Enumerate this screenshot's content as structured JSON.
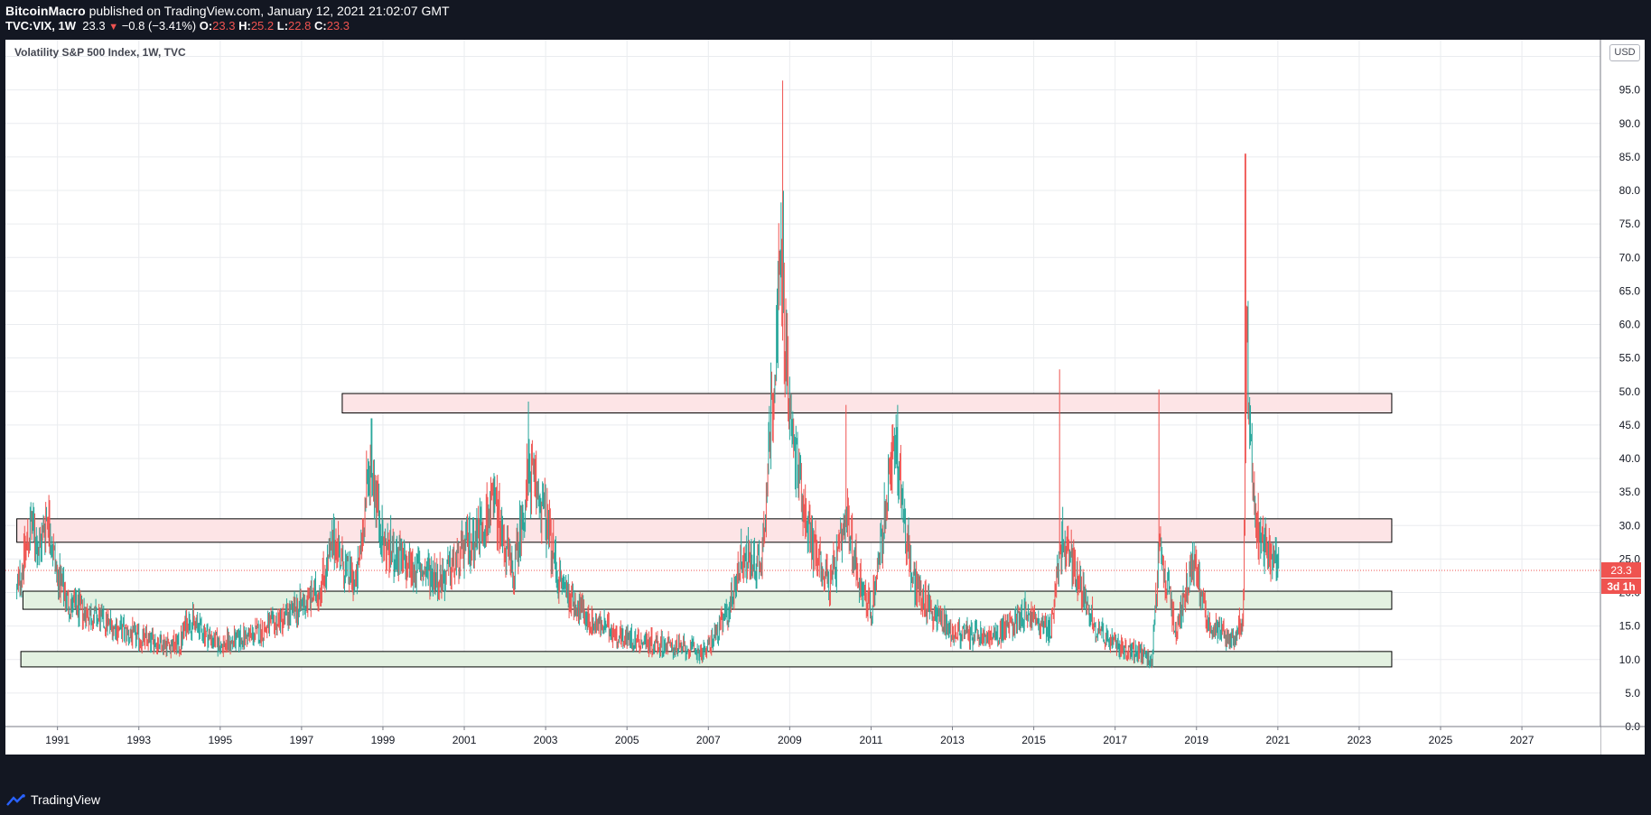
{
  "header": {
    "author": "BitcoinMacro",
    "published_text": "published on TradingView.com, January 12, 2021 21:02:07 GMT",
    "symbol": "TVC:VIX, 1W",
    "last": "23.3",
    "change": "−0.8 (−3.41%)",
    "o_label": "O:",
    "o_value": "23.3",
    "h_label": "H:",
    "h_value": "25.2",
    "l_label": "L:",
    "l_value": "22.8",
    "c_label": "C:",
    "c_value": "23.3"
  },
  "chart_title": "Volatility S&P 500 Index, 1W, TVC",
  "currency": "USD",
  "price_label": "23.3",
  "countdown_label": "3d 1h",
  "footer": {
    "brand": "TradingView",
    "logo_icon": "tradingview-logo-icon"
  },
  "colors": {
    "up": "#26a69a",
    "down": "#ef5350",
    "grid": "#eaecef",
    "resistance_zone": "#fde4e6",
    "support_zone": "#e3f1e1",
    "price_line": "#ef5350"
  },
  "chart_data": {
    "type": "candlestick",
    "xlabel": "",
    "ylabel": "",
    "x_ticks": [
      "1991",
      "1993",
      "1995",
      "1997",
      "1999",
      "2001",
      "2003",
      "2005",
      "2007",
      "2009",
      "2011",
      "2013",
      "2015",
      "2017",
      "2019",
      "2021",
      "2023",
      "2025",
      "2027"
    ],
    "x_range": [
      1989.72,
      2028.93
    ],
    "y_ticks": [
      "0.0",
      "5.0",
      "10.0",
      "15.0",
      "20.0",
      "25.0",
      "30.0",
      "35.0",
      "40.0",
      "45.0",
      "50.0",
      "55.0",
      "60.0",
      "65.0",
      "70.0",
      "75.0",
      "80.0",
      "85.0",
      "90.0",
      "95.0",
      "100.0"
    ],
    "y_range": [
      0,
      102.5
    ],
    "grid": true,
    "last_price": 23.3,
    "anchors": [
      [
        1990.0,
        20
      ],
      [
        1990.35,
        30
      ],
      [
        1990.55,
        26
      ],
      [
        1990.75,
        32
      ],
      [
        1991.0,
        22
      ],
      [
        1991.3,
        18
      ],
      [
        1992.0,
        16
      ],
      [
        1993.0,
        13
      ],
      [
        1994.0,
        12
      ],
      [
        1994.2,
        16
      ],
      [
        1995.0,
        12
      ],
      [
        1996.0,
        14
      ],
      [
        1996.8,
        17
      ],
      [
        1997.4,
        20
      ],
      [
        1997.85,
        28
      ],
      [
        1998.0,
        24
      ],
      [
        1998.35,
        21
      ],
      [
        1998.7,
        40
      ],
      [
        1999.0,
        27
      ],
      [
        1999.5,
        24
      ],
      [
        2000.0,
        23
      ],
      [
        2000.5,
        22
      ],
      [
        2001.0,
        26
      ],
      [
        2001.75,
        33
      ],
      [
        2002.2,
        22
      ],
      [
        2002.6,
        38
      ],
      [
        2003.0,
        31
      ],
      [
        2003.3,
        22
      ],
      [
        2004.0,
        16
      ],
      [
        2005.0,
        13
      ],
      [
        2006.0,
        12
      ],
      [
        2006.9,
        11
      ],
      [
        2007.5,
        17
      ],
      [
        2007.8,
        25
      ],
      [
        2008.3,
        24
      ],
      [
        2008.8,
        70
      ],
      [
        2009.0,
        45
      ],
      [
        2009.5,
        28
      ],
      [
        2010.0,
        21
      ],
      [
        2010.4,
        30
      ],
      [
        2010.8,
        20
      ],
      [
        2011.0,
        17
      ],
      [
        2011.6,
        42
      ],
      [
        2012.0,
        22
      ],
      [
        2012.5,
        17
      ],
      [
        2013.0,
        14
      ],
      [
        2014.0,
        13
      ],
      [
        2014.8,
        17
      ],
      [
        2015.4,
        14
      ],
      [
        2015.7,
        28
      ],
      [
        2016.1,
        22
      ],
      [
        2016.5,
        15
      ],
      [
        2017.0,
        12
      ],
      [
        2017.9,
        10
      ],
      [
        2018.1,
        26
      ],
      [
        2018.5,
        14
      ],
      [
        2018.9,
        25
      ],
      [
        2019.3,
        15
      ],
      [
        2019.9,
        13
      ],
      [
        2020.15,
        16
      ],
      [
        2020.22,
        60
      ],
      [
        2020.4,
        32
      ],
      [
        2020.6,
        27
      ],
      [
        2020.9,
        24
      ],
      [
        2021.03,
        23.3
      ]
    ],
    "extremes": [
      [
        1998.72,
        46
      ],
      [
        2002.58,
        48.5
      ],
      [
        2008.82,
        96.4
      ],
      [
        2010.38,
        48
      ],
      [
        2011.65,
        48
      ],
      [
        2015.63,
        53.3
      ],
      [
        2018.08,
        50.3
      ],
      [
        2020.2,
        85.5
      ]
    ],
    "zones": [
      {
        "kind": "resistance",
        "x_start": 1998.0,
        "x_end": 2023.8,
        "y_low": 46.8,
        "y_high": 49.7
      },
      {
        "kind": "resistance",
        "x_start": 1990.0,
        "x_end": 2023.8,
        "y_low": 27.5,
        "y_high": 31.0
      },
      {
        "kind": "support",
        "x_start": 1990.15,
        "x_end": 2023.8,
        "y_low": 17.5,
        "y_high": 20.2
      },
      {
        "kind": "support",
        "x_start": 1990.1,
        "x_end": 2023.8,
        "y_low": 8.9,
        "y_high": 11.2
      }
    ]
  }
}
